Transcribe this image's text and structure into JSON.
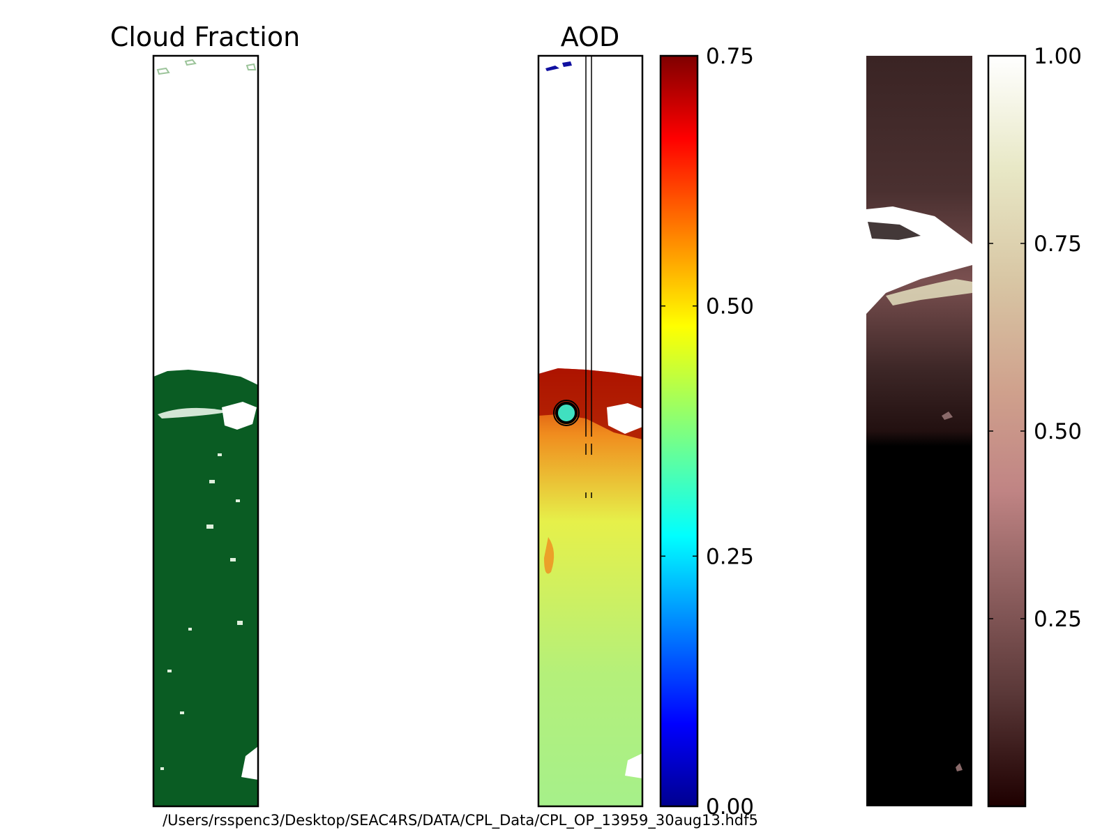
{
  "footer_path": "/Users/rsspenc3/Desktop/SEAC4RS/DATA/CPL_Data/CPL_OP_13959_30aug13.hdf5",
  "chart_data": [
    {
      "type": "heatmap",
      "title": "Cloud Fraction",
      "colormap": "greens",
      "cmap_colors": [
        "#ffffff",
        "#0a5c23"
      ],
      "mask_colors": {
        "no_data": "#ffffff",
        "cloud_edge": "#9cc49a"
      },
      "grid": false,
      "axes_ticks": false
    },
    {
      "type": "heatmap",
      "title": "AOD",
      "colormap": "jet",
      "clim": [
        0.0,
        0.75
      ],
      "colorbar_ticks": [
        {
          "v": 0.0,
          "label": "0.00"
        },
        {
          "v": 0.25,
          "label": "0.25"
        },
        {
          "v": 0.5,
          "label": "0.50"
        },
        {
          "v": 0.75,
          "label": "0.75"
        }
      ],
      "marker": {
        "symbol": "circle",
        "fill": "#40e0c0",
        "edge": "#000000"
      },
      "track_lines": 2,
      "grid": false
    },
    {
      "type": "heatmap",
      "title": "",
      "colormap": "pink",
      "clim": [
        0.0,
        1.0
      ],
      "colorbar_ticks": [
        {
          "v": 0.25,
          "label": "0.25"
        },
        {
          "v": 0.5,
          "label": "0.50"
        },
        {
          "v": 0.75,
          "label": "0.75"
        },
        {
          "v": 1.0,
          "label": "1.00"
        }
      ],
      "grid": false
    }
  ]
}
